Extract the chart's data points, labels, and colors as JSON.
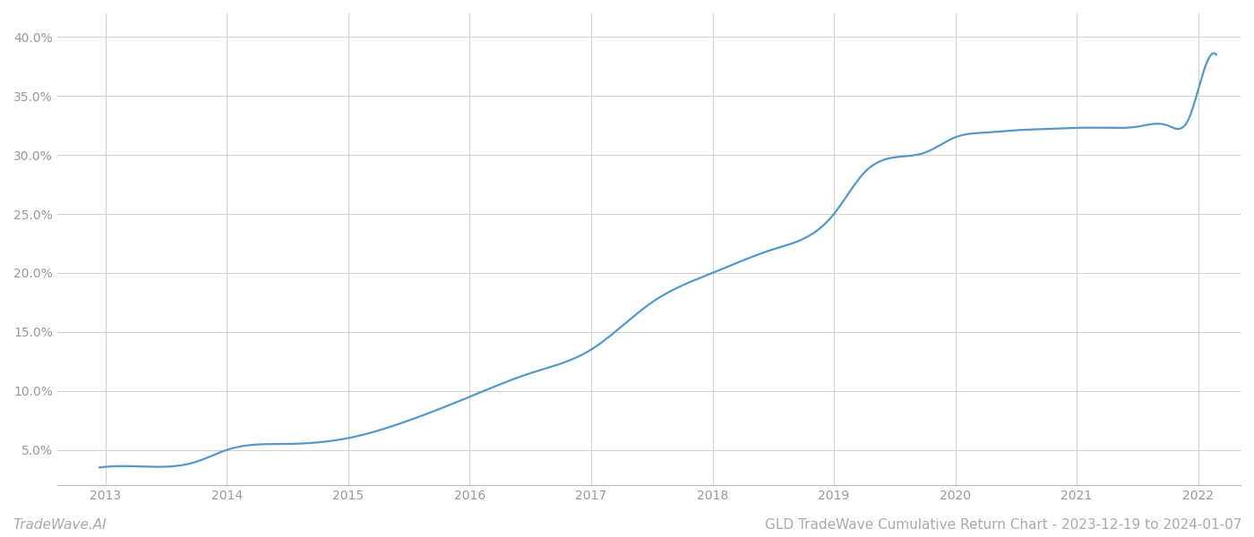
{
  "title": "GLD TradeWave Cumulative Return Chart - 2023-12-19 to 2024-01-07",
  "watermark": "TradeWave.AI",
  "x_years": [
    2013,
    2014,
    2015,
    2016,
    2017,
    2018,
    2019,
    2020,
    2021,
    2022
  ],
  "key_x": [
    2012.95,
    2013.25,
    2013.75,
    2014.0,
    2014.5,
    2015.0,
    2015.5,
    2016.0,
    2016.5,
    2017.0,
    2017.5,
    2018.0,
    2018.5,
    2019.0,
    2019.25,
    2019.5,
    2019.75,
    2020.0,
    2020.25,
    2020.5,
    2020.75,
    2021.0,
    2021.25,
    2021.5,
    2021.75,
    2021.92,
    2022.0,
    2022.15
  ],
  "key_y": [
    3.5,
    3.6,
    4.0,
    5.0,
    5.5,
    6.0,
    7.5,
    9.5,
    11.5,
    13.5,
    17.5,
    20.0,
    22.0,
    25.0,
    28.5,
    29.8,
    30.2,
    31.5,
    31.9,
    32.1,
    32.2,
    32.3,
    32.3,
    32.4,
    32.5,
    33.0,
    35.5,
    38.5
  ],
  "line_color": "#5499c7",
  "background_color": "#ffffff",
  "grid_color": "#d0d0d0",
  "y_ticks": [
    5.0,
    10.0,
    15.0,
    20.0,
    25.0,
    30.0,
    35.0,
    40.0
  ],
  "y_tick_labels": [
    "5.0%",
    "10.0%",
    "15.0%",
    "20.0%",
    "25.0%",
    "30.0%",
    "35.0%",
    "40.0%"
  ],
  "ylim": [
    2.0,
    42.0
  ],
  "xlim": [
    2012.6,
    2022.35
  ],
  "title_fontsize": 11,
  "watermark_fontsize": 11,
  "axis_fontsize": 10,
  "line_width": 1.6
}
